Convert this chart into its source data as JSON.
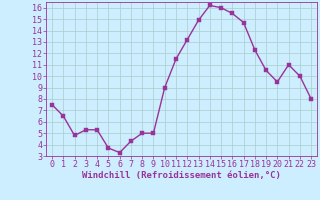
{
  "x": [
    0,
    1,
    2,
    3,
    4,
    5,
    6,
    7,
    8,
    9,
    10,
    11,
    12,
    13,
    14,
    15,
    16,
    17,
    18,
    19,
    20,
    21,
    22,
    23
  ],
  "y": [
    7.5,
    6.5,
    4.8,
    5.3,
    5.3,
    3.7,
    3.3,
    4.3,
    5.0,
    5.0,
    9.0,
    11.5,
    13.2,
    14.9,
    16.2,
    16.0,
    15.5,
    14.7,
    12.3,
    10.5,
    9.5,
    11.0,
    10.0,
    8.0
  ],
  "line_color": "#993399",
  "marker": "s",
  "markersize": 2.5,
  "linewidth": 1.0,
  "background_color": "#cceeff",
  "grid_color": "#aacccc",
  "xlabel": "Windchill (Refroidissement éolien,°C)",
  "xlabel_fontsize": 6.5,
  "tick_color": "#993399",
  "tick_fontsize": 6.0,
  "xlim": [
    -0.5,
    23.5
  ],
  "ylim": [
    3,
    16.5
  ],
  "yticks": [
    3,
    4,
    5,
    6,
    7,
    8,
    9,
    10,
    11,
    12,
    13,
    14,
    15,
    16
  ],
  "xticks": [
    0,
    1,
    2,
    3,
    4,
    5,
    6,
    7,
    8,
    9,
    10,
    11,
    12,
    13,
    14,
    15,
    16,
    17,
    18,
    19,
    20,
    21,
    22,
    23
  ]
}
